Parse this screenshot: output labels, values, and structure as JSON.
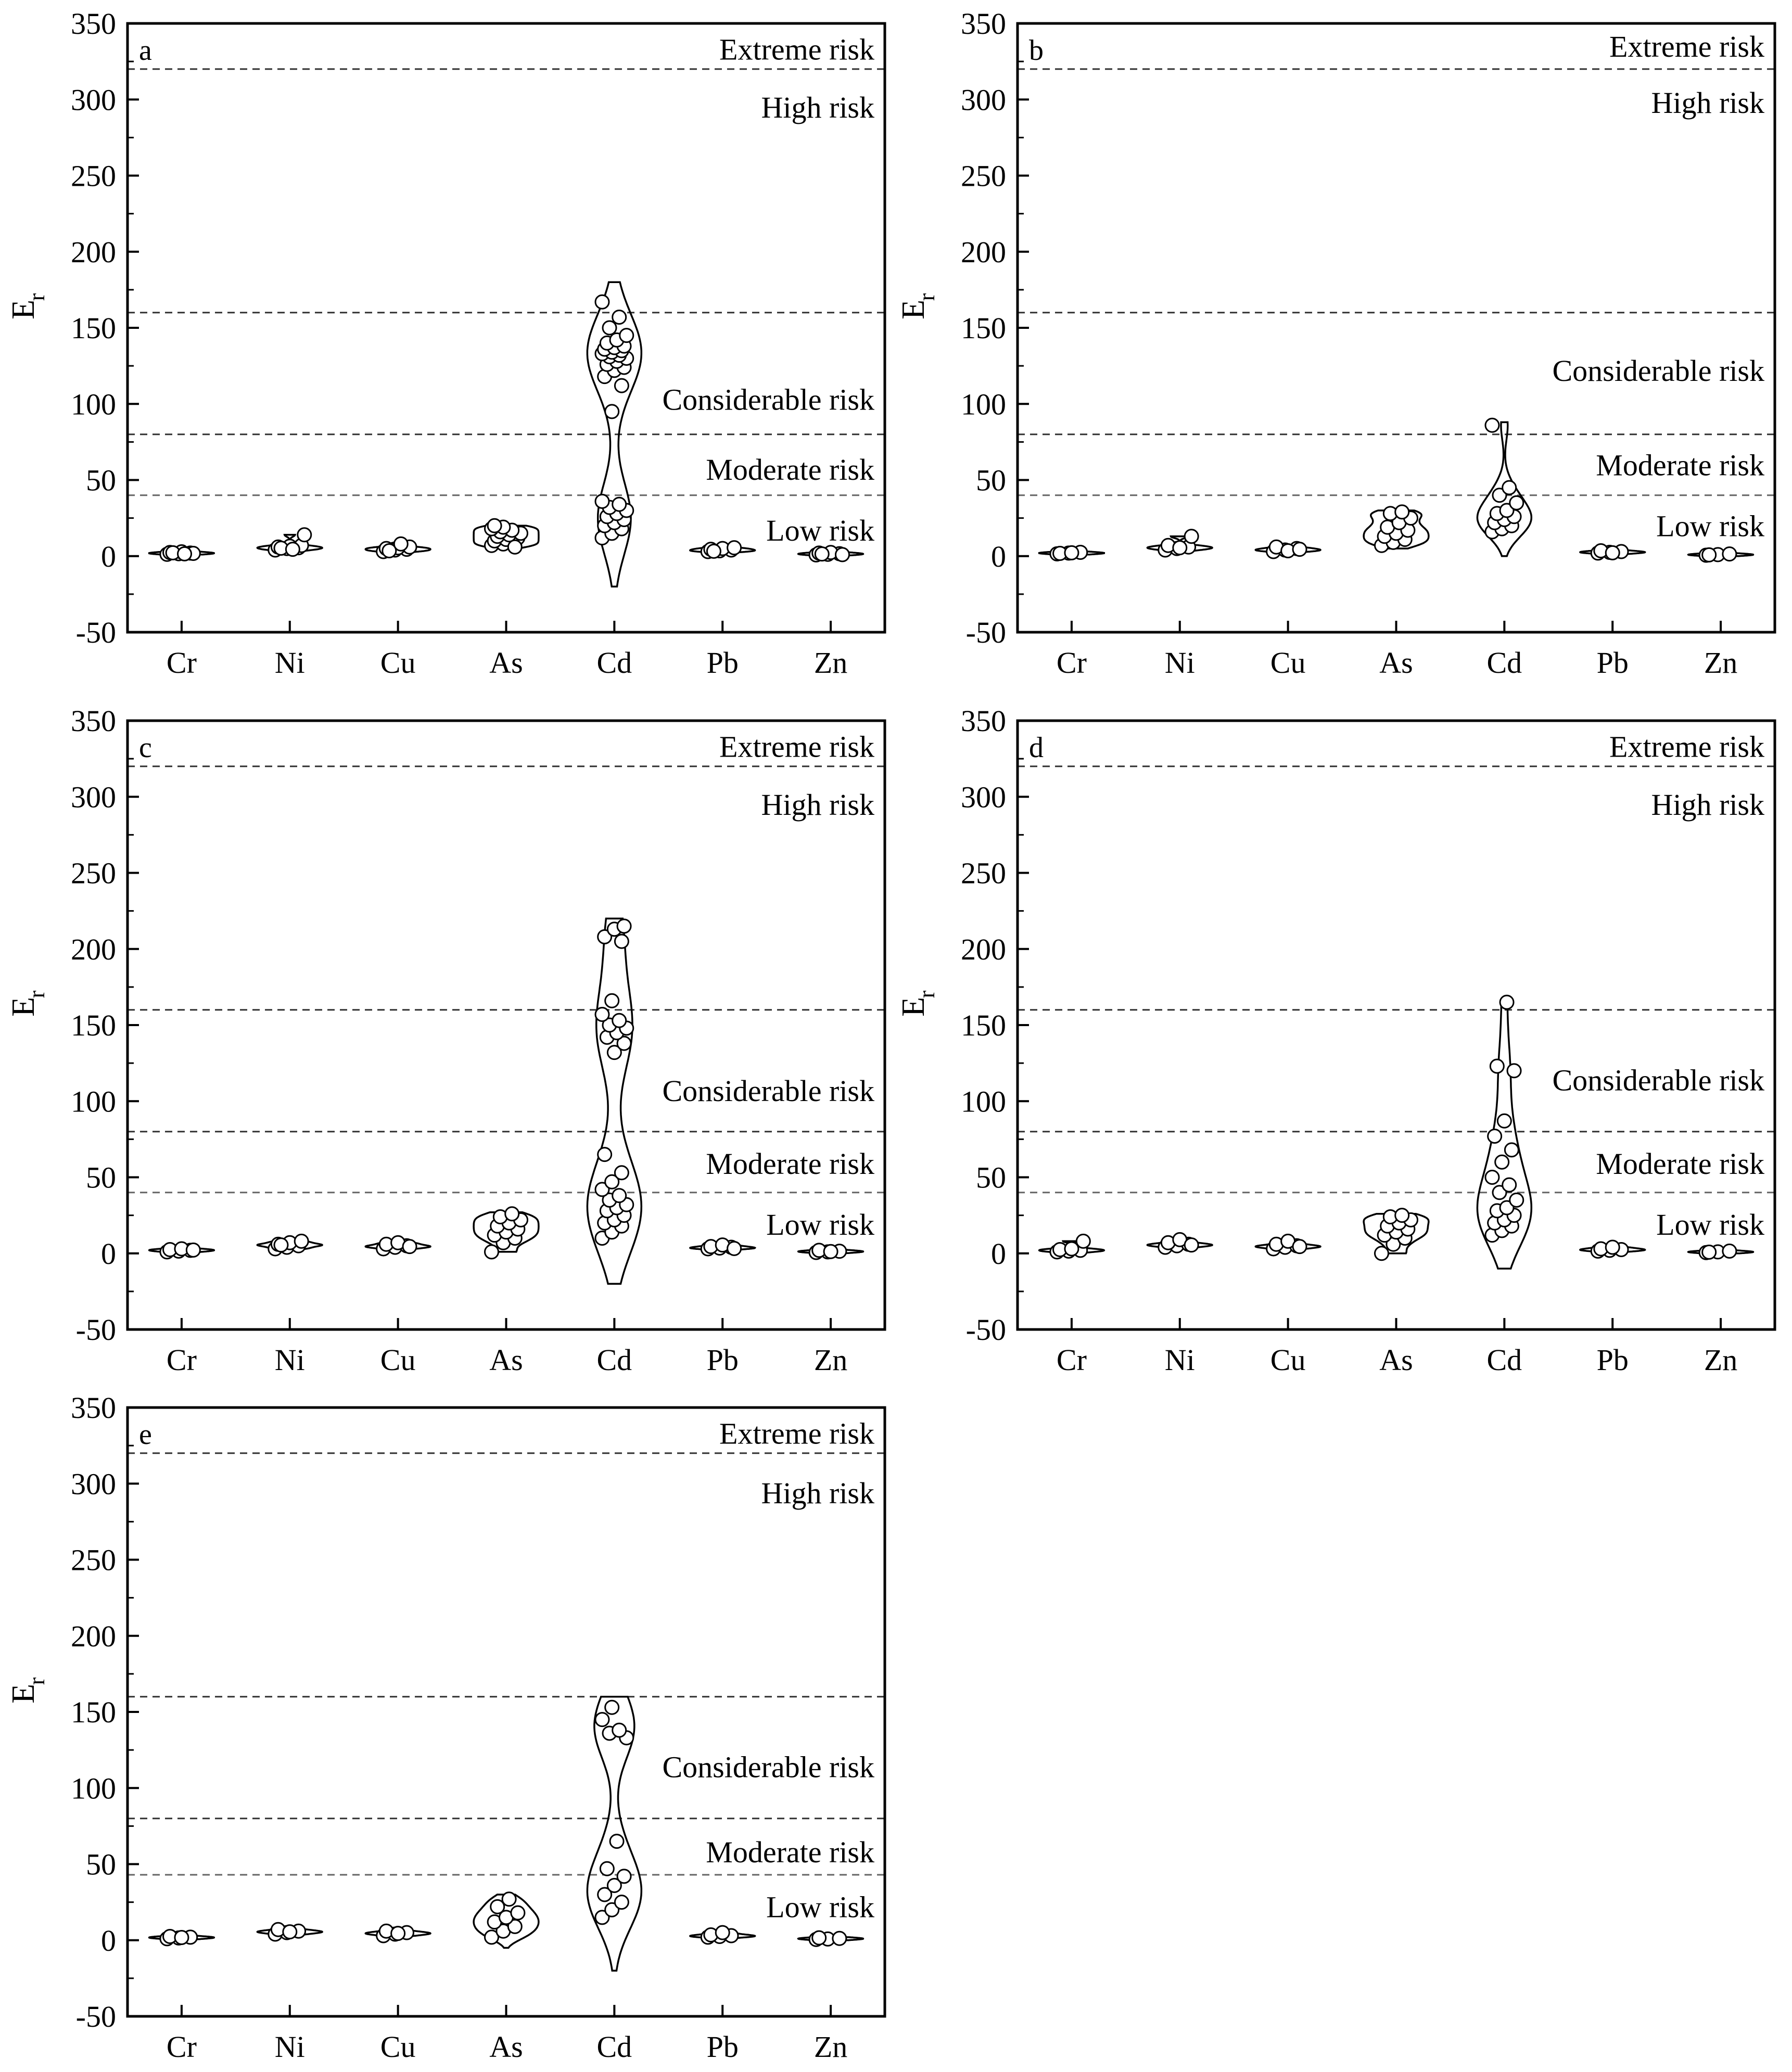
{
  "chart_data": [
    {
      "panel": "a",
      "type": "violin",
      "ylabel": "E",
      "ylabel_subscript": "r",
      "categories": [
        "Cr",
        "Ni",
        "Cu",
        "As",
        "Cd",
        "Pb",
        "Zn"
      ],
      "ylim": [
        -50,
        350
      ],
      "yticks": [
        -50,
        0,
        50,
        100,
        150,
        200,
        250,
        300,
        350
      ],
      "thresholds": [
        40,
        80,
        160,
        320
      ],
      "risk_labels": [
        {
          "text": "Extreme risk",
          "y": 333
        },
        {
          "text": "High risk",
          "y": 295
        },
        {
          "text": "Considerable risk",
          "y": 103
        },
        {
          "text": "Moderate risk",
          "y": 57
        },
        {
          "text": "Low risk",
          "y": 17
        }
      ],
      "series": [
        {
          "name": "Cr",
          "range": [
            1,
            3
          ],
          "points": [
            1.2,
            1.6,
            2,
            2.4,
            2.8,
            1.8,
            2.2,
            1.5
          ]
        },
        {
          "name": "Ni",
          "range": [
            3,
            14
          ],
          "points": [
            4,
            5,
            5.5,
            6,
            6.5,
            7,
            5.2,
            4.5,
            14
          ]
        },
        {
          "name": "Cu",
          "range": [
            2,
            9
          ],
          "points": [
            3,
            4,
            4.5,
            5,
            5.5,
            6,
            3.5,
            8
          ]
        },
        {
          "name": "As",
          "range": [
            5,
            20
          ],
          "points": [
            7,
            8,
            9,
            10,
            11,
            12,
            13,
            14,
            15,
            16,
            17,
            18,
            19,
            6,
            20
          ]
        },
        {
          "name": "Cd",
          "range": [
            -20,
            180
          ],
          "points": [
            12,
            15,
            18,
            20,
            22,
            24,
            26,
            28,
            30,
            32,
            34,
            36,
            95,
            112,
            118,
            122,
            124,
            126,
            128,
            130,
            131,
            132,
            133,
            134,
            135,
            136,
            137,
            138,
            140,
            142,
            145,
            150,
            157,
            167
          ]
        },
        {
          "name": "Pb",
          "range": [
            2,
            6
          ],
          "points": [
            3,
            3.5,
            4,
            4.5,
            5,
            5.5,
            3.2
          ]
        },
        {
          "name": "Zn",
          "range": [
            0,
            3
          ],
          "points": [
            0.8,
            1.2,
            1.6,
            2,
            2.4,
            1,
            1.4
          ]
        }
      ]
    },
    {
      "panel": "b",
      "type": "violin",
      "ylabel": "E",
      "ylabel_subscript": "r",
      "categories": [
        "Cr",
        "Ni",
        "Cu",
        "As",
        "Cd",
        "Pb",
        "Zn"
      ],
      "ylim": [
        -50,
        350
      ],
      "yticks": [
        -50,
        0,
        50,
        100,
        150,
        200,
        250,
        300,
        350
      ],
      "thresholds": [
        40,
        80,
        160,
        320
      ],
      "risk_labels": [
        {
          "text": "Extreme risk",
          "y": 335
        },
        {
          "text": "High risk",
          "y": 298
        },
        {
          "text": "Considerable risk",
          "y": 122
        },
        {
          "text": "Moderate risk",
          "y": 60
        },
        {
          "text": "Low risk",
          "y": 20
        }
      ],
      "series": [
        {
          "name": "Cr",
          "range": [
            1,
            3
          ],
          "points": [
            1.5,
            2,
            2.5,
            1.8,
            2.2
          ]
        },
        {
          "name": "Ni",
          "range": [
            3,
            13
          ],
          "points": [
            4,
            5,
            6,
            7,
            5.5,
            13
          ]
        },
        {
          "name": "Cu",
          "range": [
            2,
            7
          ],
          "points": [
            3,
            4,
            5,
            6,
            3.5,
            4.5
          ]
        },
        {
          "name": "As",
          "range": [
            5,
            30
          ],
          "points": [
            7,
            9,
            11,
            13,
            15,
            17,
            19,
            22,
            25,
            28,
            29
          ]
        },
        {
          "name": "Cd",
          "range": [
            0,
            88
          ],
          "points": [
            16,
            18,
            20,
            22,
            24,
            26,
            28,
            30,
            35,
            40,
            45,
            86
          ]
        },
        {
          "name": "Pb",
          "range": [
            1,
            5
          ],
          "points": [
            2,
            2.5,
            3,
            3.5,
            2.2
          ]
        },
        {
          "name": "Zn",
          "range": [
            0,
            2
          ],
          "points": [
            0.6,
            1,
            1.4,
            0.8
          ]
        }
      ]
    },
    {
      "panel": "c",
      "type": "violin",
      "ylabel": "E",
      "ylabel_subscript": "r",
      "categories": [
        "Cr",
        "Ni",
        "Cu",
        "As",
        "Cd",
        "Pb",
        "Zn"
      ],
      "ylim": [
        -50,
        350
      ],
      "yticks": [
        -50,
        0,
        50,
        100,
        150,
        200,
        250,
        300,
        350
      ],
      "thresholds": [
        40,
        80,
        160,
        320
      ],
      "risk_labels": [
        {
          "text": "Extreme risk",
          "y": 333
        },
        {
          "text": "High risk",
          "y": 295
        },
        {
          "text": "Considerable risk",
          "y": 107
        },
        {
          "text": "Moderate risk",
          "y": 59
        },
        {
          "text": "Low risk",
          "y": 19
        }
      ],
      "series": [
        {
          "name": "Cr",
          "range": [
            0,
            4
          ],
          "points": [
            1,
            1.5,
            2,
            2.5,
            3,
            2.2
          ]
        },
        {
          "name": "Ni",
          "range": [
            2,
            9
          ],
          "points": [
            3,
            4,
            5,
            6,
            7,
            8,
            5.5
          ]
        },
        {
          "name": "Cu",
          "range": [
            2,
            8
          ],
          "points": [
            3,
            4,
            5,
            6,
            7,
            4.5
          ]
        },
        {
          "name": "As",
          "range": [
            1,
            27
          ],
          "points": [
            1,
            7,
            10,
            12,
            14,
            16,
            18,
            20,
            22,
            24,
            26
          ]
        },
        {
          "name": "Cd",
          "range": [
            -20,
            220
          ],
          "points": [
            10,
            14,
            18,
            20,
            22,
            25,
            28,
            30,
            32,
            35,
            38,
            42,
            47,
            53,
            65,
            132,
            138,
            142,
            145,
            148,
            150,
            153,
            157,
            166,
            205,
            208,
            213,
            215
          ]
        },
        {
          "name": "Pb",
          "range": [
            2,
            7
          ],
          "points": [
            3,
            3.5,
            4,
            4.5,
            5.5,
            3.2
          ]
        },
        {
          "name": "Zn",
          "range": [
            0,
            3
          ],
          "points": [
            0.6,
            1,
            1.4,
            2,
            1.2
          ]
        }
      ]
    },
    {
      "panel": "d",
      "type": "violin",
      "ylabel": "E",
      "ylabel_subscript": "r",
      "categories": [
        "Cr",
        "Ni",
        "Cu",
        "As",
        "Cd",
        "Pb",
        "Zn"
      ],
      "ylim": [
        -50,
        350
      ],
      "yticks": [
        -50,
        0,
        50,
        100,
        150,
        200,
        250,
        300,
        350
      ],
      "thresholds": [
        40,
        80,
        160,
        320
      ],
      "risk_labels": [
        {
          "text": "Extreme risk",
          "y": 333
        },
        {
          "text": "High risk",
          "y": 295
        },
        {
          "text": "Considerable risk",
          "y": 114
        },
        {
          "text": "Moderate risk",
          "y": 59
        },
        {
          "text": "Low risk",
          "y": 19
        }
      ],
      "series": [
        {
          "name": "Cr",
          "range": [
            0,
            8
          ],
          "points": [
            1,
            1.5,
            2,
            2.5,
            3,
            8
          ]
        },
        {
          "name": "Ni",
          "range": [
            3,
            10
          ],
          "points": [
            4,
            5,
            6,
            7,
            9,
            5.5
          ]
        },
        {
          "name": "Cu",
          "range": [
            2,
            9
          ],
          "points": [
            3,
            4,
            5,
            6,
            8,
            4.5
          ]
        },
        {
          "name": "As",
          "range": [
            0,
            26
          ],
          "points": [
            0,
            6,
            10,
            12,
            14,
            16,
            18,
            20,
            22,
            24,
            25
          ]
        },
        {
          "name": "Cd",
          "range": [
            -10,
            167
          ],
          "points": [
            12,
            15,
            18,
            20,
            22,
            25,
            28,
            30,
            35,
            40,
            45,
            50,
            60,
            68,
            77,
            87,
            120,
            123,
            165
          ]
        },
        {
          "name": "Pb",
          "range": [
            1,
            5
          ],
          "points": [
            1.5,
            2,
            2.5,
            3,
            4
          ]
        },
        {
          "name": "Zn",
          "range": [
            0,
            2
          ],
          "points": [
            0.5,
            1,
            1.5,
            0.8
          ]
        }
      ]
    },
    {
      "panel": "e",
      "type": "violin",
      "ylabel": "E",
      "ylabel_subscript": "r",
      "categories": [
        "Cr",
        "Ni",
        "Cu",
        "As",
        "Cd",
        "Pb",
        "Zn"
      ],
      "ylim": [
        -50,
        350
      ],
      "yticks": [
        -50,
        0,
        50,
        100,
        150,
        200,
        250,
        300,
        350
      ],
      "thresholds": [
        43,
        80,
        160,
        320
      ],
      "risk_labels": [
        {
          "text": "Extreme risk",
          "y": 333
        },
        {
          "text": "High risk",
          "y": 294
        },
        {
          "text": "Considerable risk",
          "y": 114
        },
        {
          "text": "Moderate risk",
          "y": 58
        },
        {
          "text": "Low risk",
          "y": 22
        }
      ],
      "series": [
        {
          "name": "Cr",
          "range": [
            0,
            3
          ],
          "points": [
            1,
            1.5,
            2,
            2.5,
            1.8
          ]
        },
        {
          "name": "Ni",
          "range": [
            3,
            8
          ],
          "points": [
            4,
            5,
            6,
            7,
            5.5
          ]
        },
        {
          "name": "Cu",
          "range": [
            2,
            7
          ],
          "points": [
            3,
            4,
            5,
            6,
            4.5
          ]
        },
        {
          "name": "As",
          "range": [
            -5,
            30
          ],
          "points": [
            2,
            6,
            9,
            12,
            15,
            18,
            22,
            27
          ]
        },
        {
          "name": "Cd",
          "range": [
            -20,
            160
          ],
          "points": [
            15,
            20,
            25,
            30,
            36,
            42,
            47,
            65,
            133,
            136,
            138,
            145,
            153
          ]
        },
        {
          "name": "Pb",
          "range": [
            1,
            6
          ],
          "points": [
            2,
            2.5,
            3,
            3.5,
            5
          ]
        },
        {
          "name": "Zn",
          "range": [
            0,
            2
          ],
          "points": [
            0.5,
            0.8,
            1.2,
            1.6
          ]
        }
      ]
    }
  ]
}
